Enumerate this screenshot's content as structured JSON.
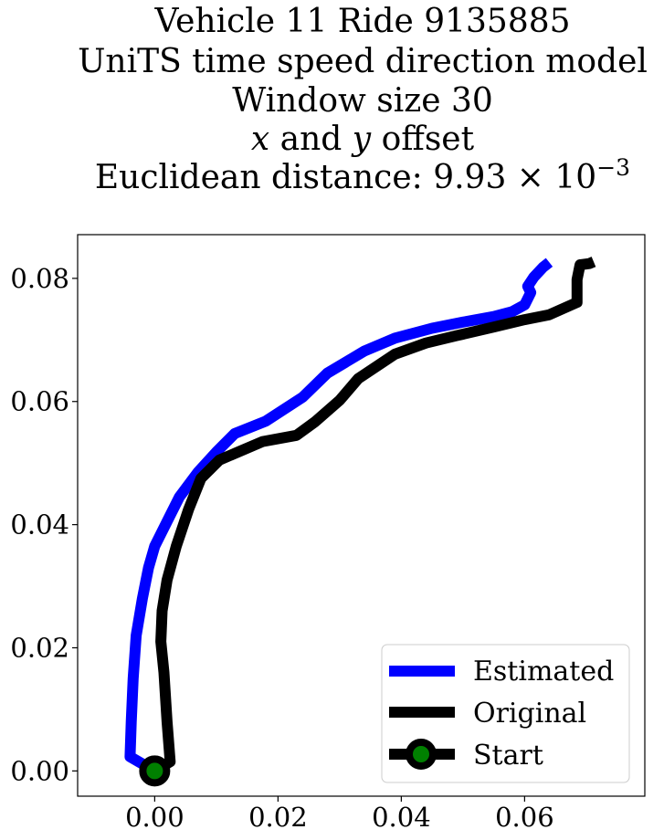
{
  "chart_data": {
    "type": "line",
    "title_lines": [
      "Vehicle 11 Ride 9135885",
      "UniTS time speed direction model",
      "Window size 30",
      "x and y offset",
      "Euclidean distance: 9.93 × 10⁻³"
    ],
    "title_line4_parts": {
      "x": "x",
      "mid": " and ",
      "y": "y",
      "end": " offset"
    },
    "title_line5_parts": {
      "base": "Euclidean distance: 9.93 × 10",
      "exp": "−3"
    },
    "xlabel": "",
    "ylabel": "",
    "xlim": [
      -0.0125,
      0.0795
    ],
    "ylim": [
      -0.0041,
      0.0871
    ],
    "x_ticks": [
      0.0,
      0.02,
      0.04,
      0.06
    ],
    "x_tick_labels": [
      "0.00",
      "0.02",
      "0.04",
      "0.06"
    ],
    "y_ticks": [
      0.0,
      0.02,
      0.04,
      0.06,
      0.08
    ],
    "y_tick_labels": [
      "0.00",
      "0.02",
      "0.04",
      "0.06",
      "0.08"
    ],
    "grid": false,
    "legend_position": "lower-right",
    "colors": {
      "estimated": "#0000ff",
      "original": "#000000",
      "start_fill": "#008000"
    },
    "series": [
      {
        "name": "Estimated",
        "color": "#0000ff",
        "points": [
          [
            0.0,
            0.0
          ],
          [
            -0.004,
            0.0023
          ],
          [
            -0.0038,
            0.008
          ],
          [
            -0.0035,
            0.015
          ],
          [
            -0.003,
            0.022
          ],
          [
            -0.002,
            0.028
          ],
          [
            -0.001,
            0.033
          ],
          [
            0.0,
            0.0365
          ],
          [
            0.002,
            0.0405
          ],
          [
            0.004,
            0.0445
          ],
          [
            0.007,
            0.0485
          ],
          [
            0.01,
            0.0518
          ],
          [
            0.013,
            0.0548
          ],
          [
            0.018,
            0.0568
          ],
          [
            0.024,
            0.0607
          ],
          [
            0.028,
            0.0646
          ],
          [
            0.034,
            0.0682
          ],
          [
            0.039,
            0.0703
          ],
          [
            0.045,
            0.0719
          ],
          [
            0.05,
            0.0729
          ],
          [
            0.055,
            0.0738
          ],
          [
            0.058,
            0.0746
          ],
          [
            0.06,
            0.0757
          ],
          [
            0.061,
            0.0777
          ],
          [
            0.0605,
            0.0787
          ],
          [
            0.0615,
            0.0802
          ],
          [
            0.063,
            0.0818
          ],
          [
            0.064,
            0.0826
          ]
        ]
      },
      {
        "name": "Original",
        "color": "#000000",
        "points": [
          [
            0.0,
            0.0
          ],
          [
            0.0025,
            0.0015
          ],
          [
            0.002,
            0.008
          ],
          [
            0.0015,
            0.016
          ],
          [
            0.001,
            0.021
          ],
          [
            0.0012,
            0.026
          ],
          [
            0.002,
            0.031
          ],
          [
            0.0035,
            0.0365
          ],
          [
            0.0055,
            0.0425
          ],
          [
            0.0075,
            0.0475
          ],
          [
            0.0105,
            0.0505
          ],
          [
            0.0175,
            0.0535
          ],
          [
            0.023,
            0.0545
          ],
          [
            0.026,
            0.0567
          ],
          [
            0.03,
            0.0602
          ],
          [
            0.033,
            0.0637
          ],
          [
            0.039,
            0.0677
          ],
          [
            0.044,
            0.0695
          ],
          [
            0.049,
            0.0707
          ],
          [
            0.055,
            0.0721
          ],
          [
            0.06,
            0.0733
          ],
          [
            0.064,
            0.0741
          ],
          [
            0.0685,
            0.0761
          ],
          [
            0.0685,
            0.0798
          ],
          [
            0.069,
            0.0822
          ],
          [
            0.0705,
            0.0824
          ],
          [
            0.0712,
            0.0827
          ]
        ]
      }
    ],
    "start": {
      "name": "Start",
      "x": 0.0,
      "y": 0.0
    }
  }
}
